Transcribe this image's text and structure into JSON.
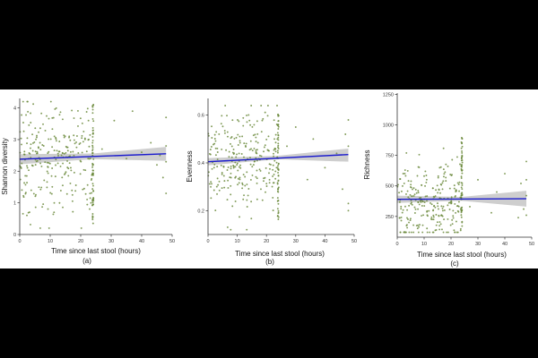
{
  "chart_data": [
    {
      "type": "scatter",
      "panel_label": "(a)",
      "xlabel": "Time since last stool (hours)",
      "ylabel": "Shannon diversity",
      "xlim": [
        0,
        50
      ],
      "ylim": [
        0,
        4.3
      ],
      "xticks": [
        0,
        10,
        20,
        30,
        40,
        50
      ],
      "yticks": [
        0,
        1,
        2,
        3,
        4
      ],
      "point_color": "#6b8a3c",
      "trend": {
        "x": [
          0,
          48
        ],
        "y": [
          2.38,
          2.55
        ],
        "color": "#1a1acd"
      },
      "ci_band": {
        "x": [
          0,
          24,
          48
        ],
        "lower": [
          2.22,
          2.38,
          2.33
        ],
        "upper": [
          2.54,
          2.56,
          2.77
        ],
        "color": "#bdbdbd"
      },
      "cluster": {
        "x_min": 0,
        "x_max": 24,
        "y_center": 2.45,
        "y_spread": 0.85,
        "y_min": 0.2,
        "y_max": 4.2,
        "n": 260
      },
      "stack": {
        "x": 24,
        "y_min": 0.3,
        "y_max": 4.2,
        "n": 55
      },
      "sparse": {
        "x": [
          27,
          31,
          35,
          37,
          40,
          43,
          45,
          46,
          47,
          48,
          48,
          48,
          48
        ],
        "y": [
          2.7,
          3.6,
          2.4,
          3.9,
          2.6,
          2.9,
          2.2,
          2.5,
          1.8,
          2.8,
          1.3,
          3.7,
          2.3
        ]
      }
    },
    {
      "type": "scatter",
      "panel_label": "(b)",
      "xlabel": "Time since last stool (hours)",
      "ylabel": "Evenness",
      "xlim": [
        0,
        50
      ],
      "ylim": [
        0.1,
        0.67
      ],
      "xticks": [
        0,
        10,
        20,
        30,
        40,
        50
      ],
      "yticks": [
        0.2,
        0.4,
        0.6
      ],
      "point_color": "#6b8a3c",
      "trend": {
        "x": [
          0,
          48
        ],
        "y": [
          0.405,
          0.435
        ],
        "color": "#1a1acd"
      },
      "ci_band": {
        "x": [
          0,
          24,
          48
        ],
        "lower": [
          0.39,
          0.415,
          0.405
        ],
        "upper": [
          0.42,
          0.43,
          0.46
        ],
        "color": "#bdbdbd"
      },
      "cluster": {
        "x_min": 0,
        "x_max": 24,
        "y_center": 0.41,
        "y_spread": 0.11,
        "y_min": 0.12,
        "y_max": 0.64,
        "n": 260
      },
      "stack": {
        "x": 24,
        "y_min": 0.15,
        "y_max": 0.62,
        "n": 55
      },
      "sparse": {
        "x": [
          27,
          30,
          34,
          36,
          40,
          44,
          46,
          47,
          48,
          48,
          48,
          48
        ],
        "y": [
          0.47,
          0.55,
          0.33,
          0.5,
          0.38,
          0.44,
          0.29,
          0.52,
          0.2,
          0.47,
          0.58,
          0.23
        ]
      }
    },
    {
      "type": "scatter",
      "panel_label": "(c)",
      "xlabel": "Time since last stool (hours)",
      "ylabel": "Richness",
      "xlim": [
        0,
        50
      ],
      "ylim": [
        80,
        1260
      ],
      "xticks": [
        0,
        10,
        20,
        30,
        40,
        50
      ],
      "yticks": [
        250,
        500,
        750,
        1000,
        1250
      ],
      "point_color": "#6b8a3c",
      "trend": {
        "x": [
          0,
          48
        ],
        "y": [
          390,
          395
        ],
        "color": "#1a1acd"
      },
      "ci_band": {
        "x": [
          0,
          24,
          48
        ],
        "lower": [
          360,
          378,
          330
        ],
        "upper": [
          420,
          410,
          460
        ],
        "color": "#bdbdbd"
      },
      "cluster": {
        "x_min": 0,
        "x_max": 24,
        "y_center": 360,
        "y_spread": 170,
        "y_min": 120,
        "y_max": 1180,
        "n": 260
      },
      "stack": {
        "x": 24,
        "y_min": 150,
        "y_max": 900,
        "n": 55
      },
      "sparse": {
        "x": [
          27,
          30,
          35,
          37,
          40,
          45,
          46,
          47,
          48,
          48,
          48,
          48
        ],
        "y": [
          330,
          550,
          280,
          450,
          600,
          240,
          520,
          310,
          700,
          260,
          420,
          550
        ]
      }
    }
  ]
}
